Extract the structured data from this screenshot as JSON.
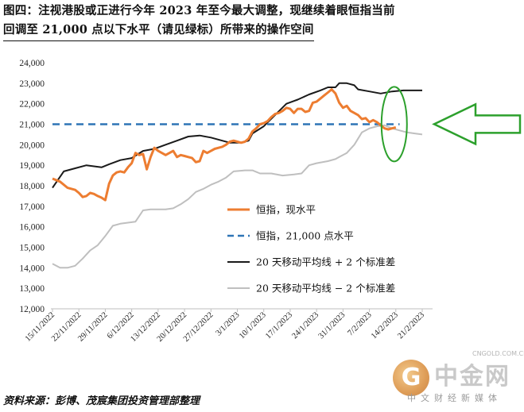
{
  "header": {
    "title_line1": "图四：注视港股或正进行今年 2023 年至今最大调整，现继续着眼恒指当前",
    "title_line2": "回调至 21,000 点以下水平（请见绿标）所带来的操作空间"
  },
  "footer": {
    "source": "资料来源：彭博、茂宸集团投资管理部整理"
  },
  "watermark": {
    "logo_char": "G",
    "name": "中金网",
    "url": "CNGOLD.COM.CN",
    "sub": "中文财经新媒体"
  },
  "colors": {
    "hsi": "#ed7d31",
    "level": "#2e75b6",
    "upper": "#1a1a1a",
    "lower": "#bfbfbf",
    "highlight": "#2ca02c"
  },
  "chart_data": {
    "type": "line",
    "ylim": [
      12000,
      24000
    ],
    "yticks": [
      12000,
      13000,
      14000,
      15000,
      16000,
      17000,
      18000,
      19000,
      20000,
      21000,
      22000,
      23000,
      24000
    ],
    "ytick_labels": [
      "12,000",
      "13,000",
      "14,000",
      "15,000",
      "16,000",
      "17,000",
      "18,000",
      "19,000",
      "20,000",
      "21,000",
      "22,000",
      "23,000",
      "24,000"
    ],
    "xlim": [
      0,
      99
    ],
    "xticks": [
      0,
      7,
      14,
      21,
      28,
      35,
      42,
      49,
      56,
      63,
      70,
      77,
      84,
      91,
      98
    ],
    "xtick_labels": [
      "15/11/2022",
      "22/11/2022",
      "29/11/2022",
      "6/12/2022",
      "13/12/2022",
      "20/12/2022",
      "27/12/2022",
      "3/1/2023",
      "10/1/2023",
      "17/1/2023",
      "24/1/2023",
      "31/1/2023",
      "7/2/2023",
      "14/2/2023",
      "21/2/2023"
    ],
    "grid": false,
    "legend_position": "center-right",
    "series": [
      {
        "name": "恒指，现水平",
        "style": "solid",
        "points": [
          [
            0,
            18350
          ],
          [
            2,
            18200
          ],
          [
            4,
            17900
          ],
          [
            6,
            17800
          ],
          [
            7,
            17650
          ],
          [
            8,
            17450
          ],
          [
            9,
            17500
          ],
          [
            10,
            17650
          ],
          [
            11,
            17600
          ],
          [
            12,
            17500
          ],
          [
            13,
            17420
          ],
          [
            14,
            17300
          ],
          [
            15,
            18100
          ],
          [
            16,
            18500
          ],
          [
            17,
            18650
          ],
          [
            18,
            18700
          ],
          [
            19,
            18650
          ],
          [
            20,
            18900
          ],
          [
            21,
            19100
          ],
          [
            22,
            19600
          ],
          [
            23,
            19500
          ],
          [
            24,
            19550
          ],
          [
            25,
            18800
          ],
          [
            26,
            19400
          ],
          [
            27,
            19850
          ],
          [
            28,
            19700
          ],
          [
            29,
            19600
          ],
          [
            30,
            19500
          ],
          [
            31,
            19600
          ],
          [
            32,
            19700
          ],
          [
            33,
            19400
          ],
          [
            34,
            19500
          ],
          [
            35,
            19450
          ],
          [
            36,
            19400
          ],
          [
            37,
            19350
          ],
          [
            38,
            19150
          ],
          [
            39,
            19200
          ],
          [
            40,
            19700
          ],
          [
            41,
            19600
          ],
          [
            42,
            19700
          ],
          [
            43,
            19800
          ],
          [
            44,
            19850
          ],
          [
            45,
            19900
          ],
          [
            46,
            20000
          ],
          [
            47,
            20150
          ],
          [
            48,
            20200
          ],
          [
            49,
            20150
          ],
          [
            50,
            20100
          ],
          [
            51,
            20150
          ],
          [
            52,
            20300
          ],
          [
            53,
            20650
          ],
          [
            54,
            20800
          ],
          [
            55,
            21000
          ],
          [
            56,
            21050
          ],
          [
            57,
            21150
          ],
          [
            58,
            21350
          ],
          [
            59,
            21500
          ],
          [
            60,
            21550
          ],
          [
            61,
            21650
          ],
          [
            62,
            21800
          ],
          [
            63,
            21750
          ],
          [
            64,
            21550
          ],
          [
            65,
            21750
          ],
          [
            66,
            21750
          ],
          [
            67,
            21600
          ],
          [
            68,
            21650
          ],
          [
            69,
            22050
          ],
          [
            70,
            22100
          ],
          [
            71,
            22250
          ],
          [
            72,
            22400
          ],
          [
            73,
            22550
          ],
          [
            74,
            22700
          ],
          [
            75,
            22500
          ],
          [
            76,
            22050
          ],
          [
            77,
            21800
          ],
          [
            78,
            21900
          ],
          [
            79,
            21650
          ],
          [
            80,
            21550
          ],
          [
            81,
            21450
          ],
          [
            82,
            21250
          ],
          [
            83,
            21300
          ],
          [
            84,
            21100
          ],
          [
            85,
            21200
          ],
          [
            86,
            21100
          ],
          [
            87,
            20950
          ],
          [
            88,
            20800
          ],
          [
            89,
            20750
          ],
          [
            90,
            20800
          ],
          [
            91,
            20850
          ]
        ]
      },
      {
        "name": "恒指，21,000 点水平",
        "style": "dashed",
        "points": [
          [
            0,
            21000
          ],
          [
            92,
            21000
          ]
        ]
      },
      {
        "name": "20 天移动平均线 + 2 个标准差",
        "style": "solid",
        "points": [
          [
            0,
            17900
          ],
          [
            3,
            18700
          ],
          [
            6,
            18850
          ],
          [
            9,
            19000
          ],
          [
            11,
            18950
          ],
          [
            13,
            18900
          ],
          [
            15,
            19050
          ],
          [
            18,
            19250
          ],
          [
            21,
            19350
          ],
          [
            24,
            19700
          ],
          [
            27,
            19800
          ],
          [
            30,
            20000
          ],
          [
            33,
            20200
          ],
          [
            36,
            20400
          ],
          [
            39,
            20450
          ],
          [
            42,
            20350
          ],
          [
            45,
            20200
          ],
          [
            47,
            20100
          ],
          [
            50,
            20100
          ],
          [
            52,
            20200
          ],
          [
            53,
            20550
          ],
          [
            56,
            20900
          ],
          [
            59,
            21450
          ],
          [
            62,
            22000
          ],
          [
            65,
            22200
          ],
          [
            68,
            22450
          ],
          [
            71,
            22650
          ],
          [
            73,
            22800
          ],
          [
            75,
            22800
          ],
          [
            76,
            23000
          ],
          [
            78,
            23000
          ],
          [
            80,
            22900
          ],
          [
            81,
            22700
          ],
          [
            84,
            22600
          ],
          [
            87,
            22500
          ],
          [
            90,
            22600
          ],
          [
            93,
            22650
          ],
          [
            96,
            22650
          ],
          [
            98,
            22650
          ]
        ]
      },
      {
        "name": "20 天移动平均线 − 2 个标准差",
        "style": "solid",
        "points": [
          [
            0,
            14200
          ],
          [
            2,
            14000
          ],
          [
            4,
            14000
          ],
          [
            6,
            14100
          ],
          [
            8,
            14450
          ],
          [
            10,
            14850
          ],
          [
            12,
            15100
          ],
          [
            14,
            15550
          ],
          [
            16,
            16050
          ],
          [
            18,
            16150
          ],
          [
            20,
            16200
          ],
          [
            22,
            16250
          ],
          [
            24,
            16800
          ],
          [
            26,
            16850
          ],
          [
            28,
            16850
          ],
          [
            30,
            16850
          ],
          [
            32,
            16900
          ],
          [
            34,
            17100
          ],
          [
            36,
            17350
          ],
          [
            38,
            17700
          ],
          [
            40,
            17850
          ],
          [
            42,
            18050
          ],
          [
            44,
            18200
          ],
          [
            46,
            18400
          ],
          [
            48,
            18700
          ],
          [
            51,
            18750
          ],
          [
            53,
            18750
          ],
          [
            55,
            18600
          ],
          [
            58,
            18600
          ],
          [
            61,
            18500
          ],
          [
            64,
            18550
          ],
          [
            66,
            18600
          ],
          [
            68,
            19000
          ],
          [
            70,
            19100
          ],
          [
            73,
            19200
          ],
          [
            75,
            19300
          ],
          [
            76,
            19400
          ],
          [
            78,
            19600
          ],
          [
            80,
            20000
          ],
          [
            82,
            20600
          ],
          [
            84,
            20800
          ],
          [
            86,
            20900
          ],
          [
            88,
            20950
          ],
          [
            90,
            20800
          ],
          [
            92,
            20700
          ],
          [
            94,
            20600
          ],
          [
            96,
            20550
          ],
          [
            98,
            20500
          ]
        ]
      }
    ]
  }
}
